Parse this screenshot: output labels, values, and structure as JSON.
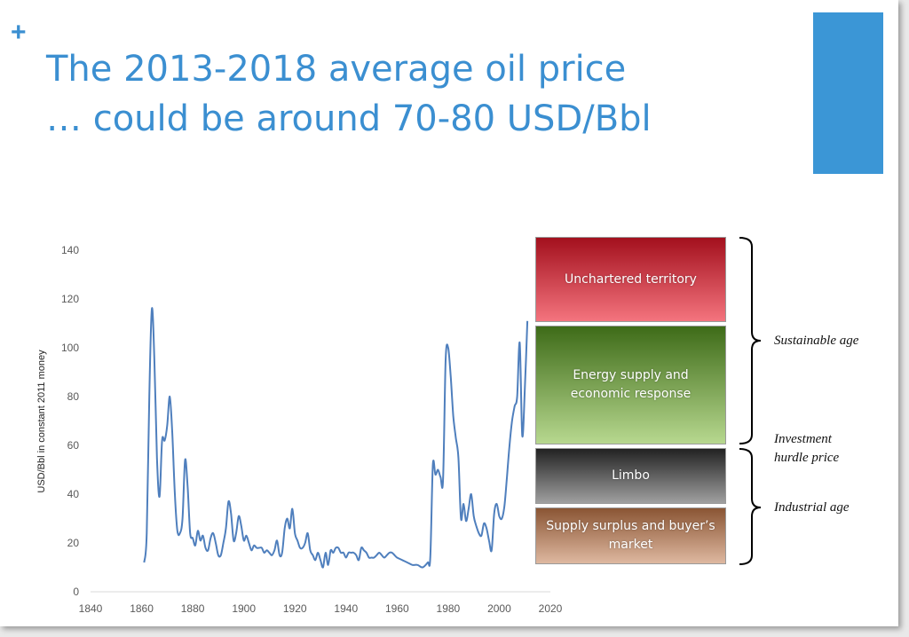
{
  "slide": {
    "plus_symbol": "+",
    "title_line1": "The 2013-2018 average oil price",
    "title_line2": "… could be around 70-80 USD/Bbl",
    "accent_color": "#3b96d6",
    "title_color": "#3b8fd1"
  },
  "chart_data": {
    "type": "line",
    "title": "",
    "xlabel": "",
    "ylabel": "USD/Bbl in constant 2011 money",
    "xlim": [
      1840,
      2020
    ],
    "ylim": [
      0,
      140
    ],
    "x_ticks": [
      1840,
      1860,
      1880,
      1900,
      1920,
      1940,
      1960,
      1980,
      2000,
      2020
    ],
    "y_ticks": [
      0,
      20,
      40,
      60,
      80,
      100,
      120,
      140
    ],
    "grid": false,
    "line_color": "#4f7fbd",
    "series": [
      {
        "x": [
          1861,
          1862,
          1863,
          1864,
          1865,
          1866,
          1867,
          1868,
          1869,
          1870,
          1871,
          1872,
          1873,
          1874,
          1875,
          1876,
          1877,
          1878,
          1879,
          1880,
          1881,
          1882,
          1883,
          1884,
          1885,
          1886,
          1887,
          1888,
          1889,
          1890,
          1891,
          1892,
          1893,
          1894,
          1895,
          1896,
          1897,
          1898,
          1899,
          1900,
          1901,
          1902,
          1903,
          1904,
          1905,
          1906,
          1907,
          1908,
          1909,
          1910,
          1911,
          1912,
          1913,
          1914,
          1915,
          1916,
          1917,
          1918,
          1919,
          1920,
          1921,
          1922,
          1923,
          1924,
          1925,
          1926,
          1927,
          1928,
          1929,
          1930,
          1931,
          1932,
          1933,
          1934,
          1935,
          1936,
          1937,
          1938,
          1939,
          1940,
          1941,
          1942,
          1943,
          1944,
          1945,
          1946,
          1947,
          1948,
          1949,
          1950,
          1951,
          1952,
          1953,
          1954,
          1955,
          1956,
          1957,
          1958,
          1959,
          1960,
          1962,
          1964,
          1966,
          1968,
          1970,
          1972,
          1973,
          1974,
          1975,
          1976,
          1977,
          1978,
          1979,
          1980,
          1981,
          1982,
          1983,
          1984,
          1985,
          1986,
          1987,
          1988,
          1989,
          1990,
          1991,
          1992,
          1993,
          1994,
          1995,
          1996,
          1997,
          1998,
          1999,
          2000,
          2001,
          2002,
          2003,
          2004,
          2005,
          2006,
          2007,
          2008,
          2009,
          2010,
          2011
        ],
        "values": [
          12,
          24,
          80,
          116,
          95,
          55,
          39,
          62,
          62,
          68,
          80,
          65,
          40,
          25,
          24,
          30,
          54,
          43,
          24,
          22,
          19,
          25,
          21,
          23,
          18,
          17,
          22,
          24,
          20,
          15,
          15,
          20,
          26,
          37,
          32,
          21,
          24,
          31,
          27,
          21,
          23,
          20,
          17,
          19,
          18,
          18,
          18,
          16,
          17,
          16,
          15,
          17,
          21,
          15,
          16,
          26,
          30,
          26,
          34,
          24,
          21,
          18,
          18,
          20,
          24,
          17,
          15,
          13,
          16,
          13,
          10,
          16,
          11,
          17,
          16,
          18,
          18,
          16,
          16,
          14,
          16,
          16,
          16,
          15,
          13,
          18,
          17,
          16,
          14,
          14,
          14,
          15,
          16,
          15,
          14,
          15,
          16,
          16,
          15,
          14,
          13,
          12,
          11,
          11,
          10,
          12,
          14,
          52,
          48,
          50,
          47,
          46,
          95,
          100,
          88,
          72,
          63,
          55,
          30,
          36,
          29,
          34,
          40,
          31,
          27,
          24,
          23,
          28,
          26,
          21,
          17,
          32,
          36,
          31,
          30,
          35,
          47,
          60,
          70,
          76,
          80,
          102,
          64,
          83,
          111
        ]
      }
    ]
  },
  "zones": [
    {
      "label": "Unchartered territory"
    },
    {
      "label": "Energy supply and economic response"
    },
    {
      "label": "Limbo"
    },
    {
      "label": "Supply surplus and buyer’s market"
    }
  ],
  "annotations": {
    "upper": "Sustainable age",
    "middle_line1": "Investment",
    "middle_line2": "hurdle price",
    "lower": "Industrial age"
  }
}
